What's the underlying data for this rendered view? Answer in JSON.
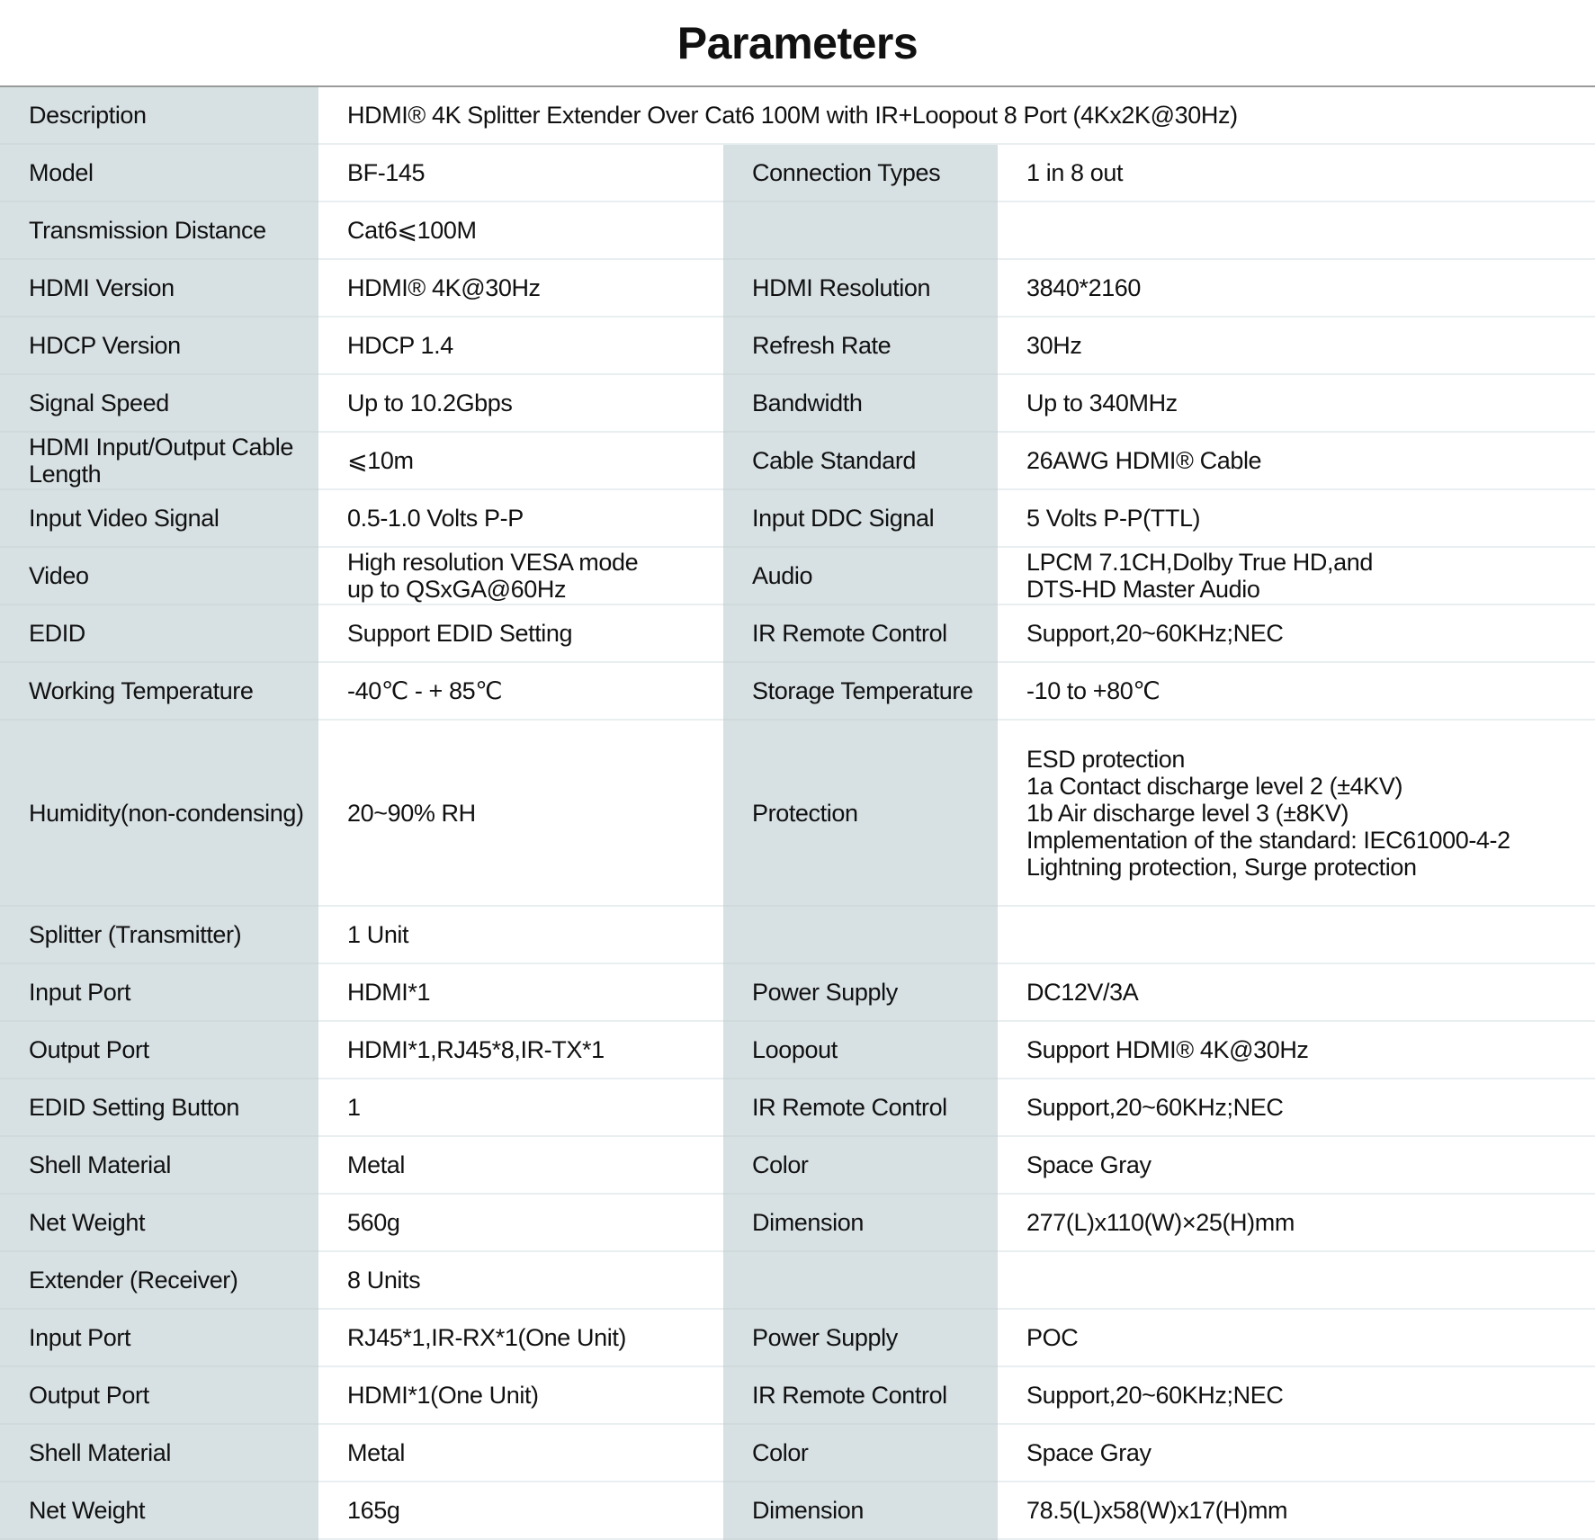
{
  "title": "Parameters",
  "rows": [
    {
      "l1": "Description",
      "v1": "HDMI® 4K Splitter Extender Over Cat6 100M with IR+Loopout 8 Port (4Kx2K@30Hz)",
      "span": true
    },
    {
      "l1": "Model",
      "v1": "BF-145",
      "l2": "Connection Types",
      "v2": "1 in 8 out"
    },
    {
      "l1": "Transmission Distance",
      "v1": "Cat6⩽100M",
      "l2": "",
      "v2": ""
    },
    {
      "l1": "HDMI Version",
      "v1": "HDMI® 4K@30Hz",
      "l2": "HDMI Resolution",
      "v2": "3840*2160"
    },
    {
      "l1": "HDCP Version",
      "v1": "HDCP 1.4",
      "l2": "Refresh Rate",
      "v2": "30Hz"
    },
    {
      "l1": "Signal Speed",
      "v1": "Up to 10.2Gbps",
      "l2": "Bandwidth",
      "v2": "Up to 340MHz"
    },
    {
      "l1": "HDMI Input/Output Cable\nLength",
      "v1": "⩽10m",
      "l2": "Cable Standard",
      "v2": "26AWG HDMI® Cable"
    },
    {
      "l1": "Input Video Signal",
      "v1": "0.5-1.0 Volts P-P",
      "l2": "Input DDC Signal",
      "v2": "5 Volts P-P(TTL)"
    },
    {
      "l1": "Video",
      "v1": "High resolution VESA mode\nup to QSxGA@60Hz",
      "l2": "Audio",
      "v2": "LPCM 7.1CH,Dolby True HD,and\nDTS-HD Master Audio"
    },
    {
      "l1": "EDID",
      "v1": "Support EDID Setting",
      "l2": "IR Remote Control",
      "v2": "Support,20~60KHz;NEC"
    },
    {
      "l1": "Working Temperature",
      "v1": "-40℃ - + 85℃",
      "l2": "Storage Temperature",
      "v2": "-10 to +80℃"
    },
    {
      "l1": "Humidity(non-condensing)",
      "v1": "20~90% RH",
      "l2": "Protection",
      "v2": "ESD protection\n1a Contact discharge level 2 (±4KV)\n1b Air discharge level 3 (±8KV)\nImplementation of the standard: IEC61000-4-2\nLightning protection, Surge protection",
      "tall": true
    },
    {
      "l1": "Splitter (Transmitter)",
      "v1": "1 Unit",
      "l2": "",
      "v2": ""
    },
    {
      "l1": "Input Port",
      "v1": "HDMI*1",
      "l2": "Power Supply",
      "v2": "DC12V/3A"
    },
    {
      "l1": "Output Port",
      "v1": "HDMI*1,RJ45*8,IR-TX*1",
      "l2": "Loopout",
      "v2": "Support HDMI® 4K@30Hz"
    },
    {
      "l1": "EDID Setting Button",
      "v1": "1",
      "l2": "IR Remote Control",
      "v2": "Support,20~60KHz;NEC"
    },
    {
      "l1": "Shell Material",
      "v1": "Metal",
      "l2": "Color",
      "v2": "Space Gray"
    },
    {
      "l1": "Net Weight",
      "v1": "560g",
      "l2": "Dimension",
      "v2": "277(L)x110(W)×25(H)mm"
    },
    {
      "l1": "Extender (Receiver)",
      "v1": "8 Units",
      "l2": "",
      "v2": ""
    },
    {
      "l1": "Input Port",
      "v1": "RJ45*1,IR-RX*1(One Unit)",
      "l2": "Power Supply",
      "v2": "POC"
    },
    {
      "l1": "Output Port",
      "v1": "HDMI*1(One Unit)",
      "l2": "IR Remote Control",
      "v2": "Support,20~60KHz;NEC"
    },
    {
      "l1": "Shell Material",
      "v1": "Metal",
      "l2": "Color",
      "v2": "Space Gray"
    },
    {
      "l1": "Net Weight",
      "v1": "165g",
      "l2": "Dimension",
      "v2": "78.5(L)x58(W)x17(H)mm"
    }
  ]
}
